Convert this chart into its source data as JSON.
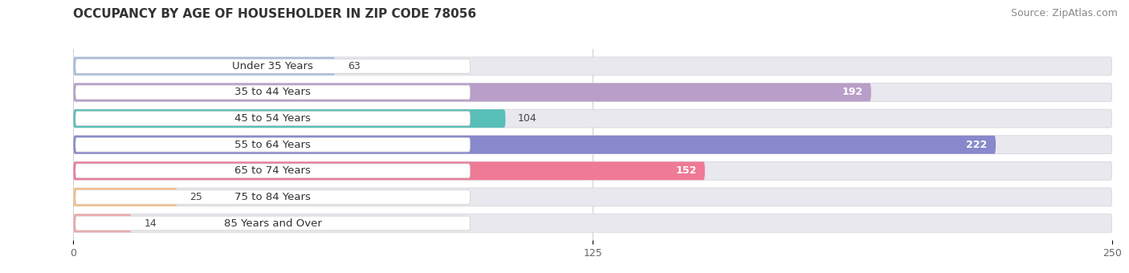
{
  "title": "OCCUPANCY BY AGE OF HOUSEHOLDER IN ZIP CODE 78056",
  "source": "Source: ZipAtlas.com",
  "categories": [
    "Under 35 Years",
    "35 to 44 Years",
    "45 to 54 Years",
    "55 to 64 Years",
    "65 to 74 Years",
    "75 to 84 Years",
    "85 Years and Over"
  ],
  "values": [
    63,
    192,
    104,
    222,
    152,
    25,
    14
  ],
  "bar_colors": [
    "#a8bedd",
    "#b89ec8",
    "#58bfb8",
    "#8888cc",
    "#ee7a96",
    "#f5c088",
    "#f0a8a8"
  ],
  "xlim": [
    0,
    250
  ],
  "xticks": [
    0,
    125,
    250
  ],
  "bar_bg_color": "#e8e8ee",
  "bar_height": 0.7,
  "label_pill_color": "#ffffff",
  "label_fontsize": 9.5,
  "value_fontsize": 9.0,
  "title_fontsize": 11,
  "source_fontsize": 9,
  "figsize": [
    14.06,
    3.4
  ],
  "dpi": 100
}
